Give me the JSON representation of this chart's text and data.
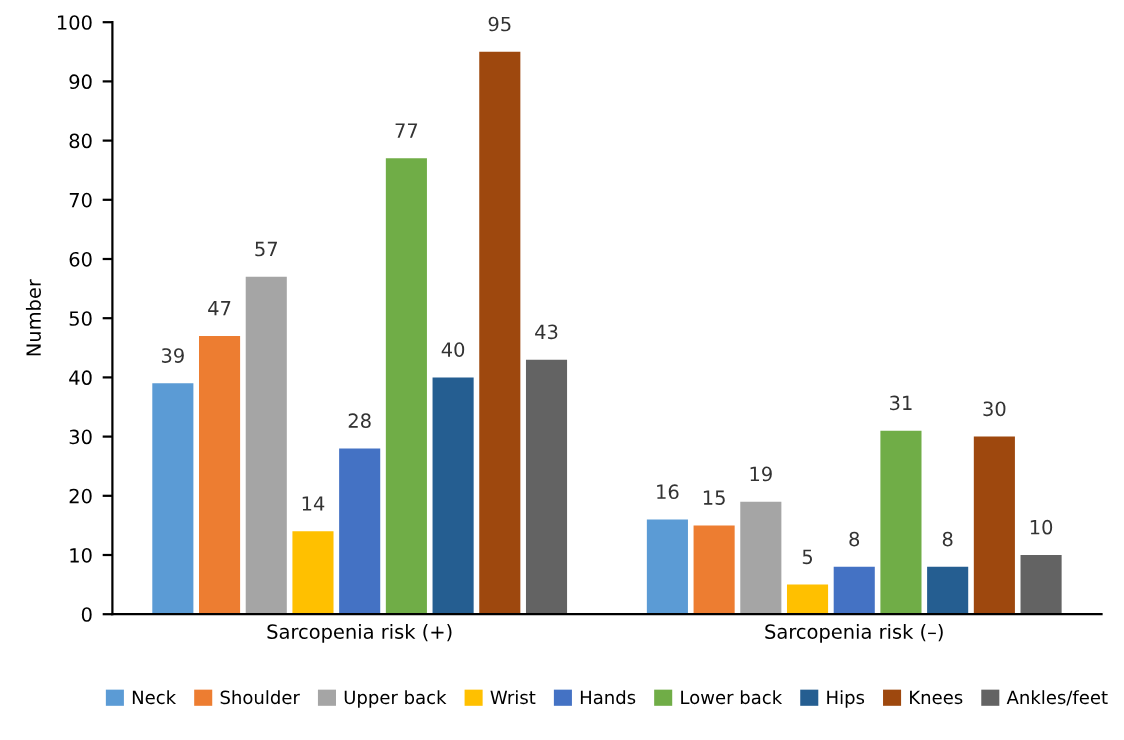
{
  "chart_data": {
    "type": "bar",
    "ylabel": "Number",
    "categories": [
      "Sarcopenia risk (+)",
      "Sarcopenia risk (–)"
    ],
    "series": [
      {
        "name": "Neck",
        "color": "#5b9bd5",
        "values": [
          39,
          16
        ]
      },
      {
        "name": "Shoulder",
        "color": "#ed7d31",
        "values": [
          47,
          15
        ]
      },
      {
        "name": "Upper back",
        "color": "#a5a5a5",
        "values": [
          57,
          19
        ]
      },
      {
        "name": "Wrist",
        "color": "#ffc000",
        "values": [
          14,
          5
        ]
      },
      {
        "name": "Hands",
        "color": "#4472c4",
        "values": [
          28,
          8
        ]
      },
      {
        "name": "Lower back",
        "color": "#70ad47",
        "values": [
          77,
          31
        ]
      },
      {
        "name": "Hips",
        "color": "#255e91",
        "values": [
          40,
          8
        ]
      },
      {
        "name": "Knees",
        "color": "#9e480e",
        "values": [
          95,
          30
        ]
      },
      {
        "name": "Ankles/feet",
        "color": "#636363",
        "values": [
          43,
          10
        ]
      }
    ],
    "ylim": [
      0,
      100
    ],
    "yticks": [
      0,
      10,
      20,
      30,
      40,
      50,
      60,
      70,
      80,
      90,
      100
    ],
    "data_labels": true,
    "grid": false,
    "legend": "bottom"
  }
}
